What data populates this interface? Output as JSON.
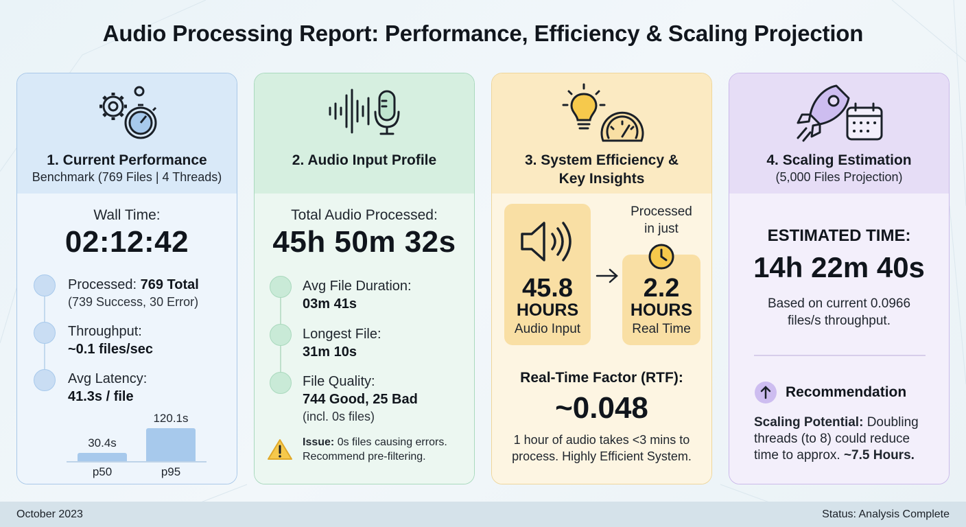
{
  "title": "Audio Processing Report: Performance, Efficiency & Scaling Projection",
  "colors": {
    "blue": "#a7c9ec",
    "green": "#bfe5cf",
    "amber": "#f9dfa4",
    "purple": "#cdbdf0"
  },
  "card1": {
    "icon": "gear-stopwatch-icon",
    "title": "1. Current Performance",
    "subtitle": "Benchmark (769 Files | 4 Threads)",
    "wall_label": "Wall Time:",
    "wall_value": "02:12:42",
    "items": [
      {
        "label": "Processed: ",
        "strong": "769 Total",
        "sub": "(739 Success, 30 Error)"
      },
      {
        "label": "Throughput:",
        "strong": "~0.1 files/sec"
      },
      {
        "label": "Avg Latency:",
        "strong": "41.3s / file"
      }
    ],
    "latency_chart": {
      "type": "bar",
      "categories": [
        "p50",
        "p95"
      ],
      "values": [
        30.4,
        120.1
      ],
      "value_labels": [
        "30.4s",
        "120.1s"
      ]
    }
  },
  "card2": {
    "icon": "waveform-microphone-icon",
    "title": "2. Audio Input Profile",
    "total_label": "Total Audio Processed:",
    "total_value": "45h 50m 32s",
    "items": [
      {
        "label": "Avg File Duration:",
        "strong": "03m 41s"
      },
      {
        "label": "Longest File:",
        "strong": "31m 10s"
      },
      {
        "label": "File Quality:",
        "strong": "744 Good, 25 Bad",
        "sub": "(incl. 0s files)"
      }
    ],
    "issue_label": "Issue:",
    "issue_text": " 0s files causing errors.",
    "issue_text2": "Recommend pre-filtering."
  },
  "card3": {
    "icon": "lightbulb-gauge-icon",
    "title_line1": "3. System Efficiency &",
    "title_line2": "Key Insights",
    "processed_line1": "Processed",
    "processed_line2": "in just",
    "input_value": "45.8",
    "input_unit": "HOURS",
    "input_label": "Audio Input",
    "real_value": "2.2",
    "real_unit": "HOURS",
    "real_label": "Real Time",
    "rtf_label": "Real-Time Factor (RTF):",
    "rtf_value": "~0.048",
    "note_line1": "1 hour of audio takes <3 mins to",
    "note_line2": "process. Highly Efficient System."
  },
  "card4": {
    "icon": "rocket-calendar-icon",
    "title": "4. Scaling Estimation",
    "subtitle": "(5,000 Files Projection)",
    "est_label": "ESTIMATED TIME:",
    "est_value": "14h 22m 40s",
    "basis_line1": "Based on current 0.0966",
    "basis_line2": "files/s throughput.",
    "rec_title": "Recommendation",
    "rec_strong": "Scaling Potential:",
    "rec_line1": " Doubling",
    "rec_line2": "threads (to 8) could reduce",
    "rec_line3": "time to approx. ",
    "rec_strong2": "~7.5 Hours."
  },
  "footer": {
    "date": "October 2023",
    "status": "Status: Analysis Complete"
  }
}
